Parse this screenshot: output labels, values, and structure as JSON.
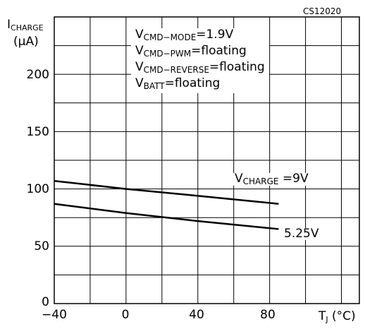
{
  "figure_code": "CS12020",
  "y_axis": {
    "label_main": "I",
    "label_sub": "CHARGE",
    "unit": "(μA)"
  },
  "x_axis": {
    "label_main": "T",
    "label_sub": "J",
    "unit": "(°C)"
  },
  "conditions": [
    {
      "main": "V",
      "sub": "CMD−MODE",
      "rest": "=1.9V"
    },
    {
      "main": "V",
      "sub": "CMD−PWM",
      "rest": "=floating"
    },
    {
      "main": "V",
      "sub": "CMD−REVERSE",
      "rest": "=floating"
    },
    {
      "main": "V",
      "sub": "BATT",
      "rest": "=floating"
    }
  ],
  "series_labels": {
    "s1_main": "V",
    "s1_sub": "CHARGE",
    "s1_rest": "=9V",
    "s2": "5.25V"
  },
  "chart_data": {
    "type": "line",
    "title": "",
    "xlabel": "TJ (°C)",
    "ylabel": "ICHARGE (μA)",
    "xlim": [
      -40,
      130
    ],
    "ylim": [
      0,
      250
    ],
    "x_ticks": [
      -40,
      0,
      40,
      80
    ],
    "x_tick_labels": [
      "−40",
      "0",
      "40",
      "80"
    ],
    "y_ticks": [
      0,
      50,
      100,
      150,
      200
    ],
    "y_tick_labels": [
      "0",
      "50",
      "100",
      "150",
      "200"
    ],
    "x_grid_step": 20,
    "y_grid_step": 25,
    "grid": true,
    "series": [
      {
        "name": "VCHARGE = 9V",
        "x": [
          -40,
          0,
          40,
          85
        ],
        "y": [
          107,
          100,
          94,
          87
        ]
      },
      {
        "name": "5.25V",
        "x": [
          -40,
          0,
          40,
          85
        ],
        "y": [
          87,
          79,
          72,
          65
        ]
      }
    ]
  }
}
